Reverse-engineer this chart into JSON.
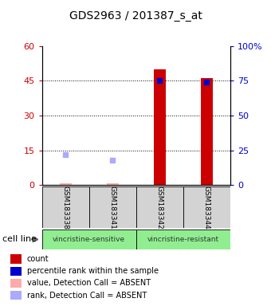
{
  "title": "GDS2963 / 201387_s_at",
  "samples": [
    "GSM183338",
    "GSM183341",
    "GSM183342",
    "GSM183344"
  ],
  "group_labels": [
    "vincristine-sensitive",
    "vincristine-resistant"
  ],
  "group_sample_counts": [
    2,
    2
  ],
  "count_values": [
    0.9,
    0.9,
    50,
    46
  ],
  "count_absent": [
    true,
    true,
    false,
    false
  ],
  "rank_values_pct": [
    22,
    18,
    75,
    74
  ],
  "rank_absent": [
    true,
    true,
    false,
    false
  ],
  "ylim_left": [
    0,
    60
  ],
  "ylim_right": [
    0,
    100
  ],
  "yticks_left": [
    0,
    15,
    30,
    45,
    60
  ],
  "ytick_labels_left": [
    "0",
    "15",
    "30",
    "45",
    "60"
  ],
  "yticks_right": [
    0,
    25,
    50,
    75,
    100
  ],
  "ytick_labels_right": [
    "0",
    "25",
    "50",
    "75",
    "100%"
  ],
  "left_color": "#cc0000",
  "right_color": "#0000cc",
  "bar_color_present": "#cc0000",
  "bar_color_absent": "#ffaaaa",
  "rank_color_present": "#0000cc",
  "rank_color_absent": "#aaaaff",
  "bar_width": 0.25,
  "legend_colors": [
    "#cc0000",
    "#0000cc",
    "#ffaaaa",
    "#aaaaff"
  ],
  "legend_labels": [
    "count",
    "percentile rank within the sample",
    "value, Detection Call = ABSENT",
    "rank, Detection Call = ABSENT"
  ]
}
